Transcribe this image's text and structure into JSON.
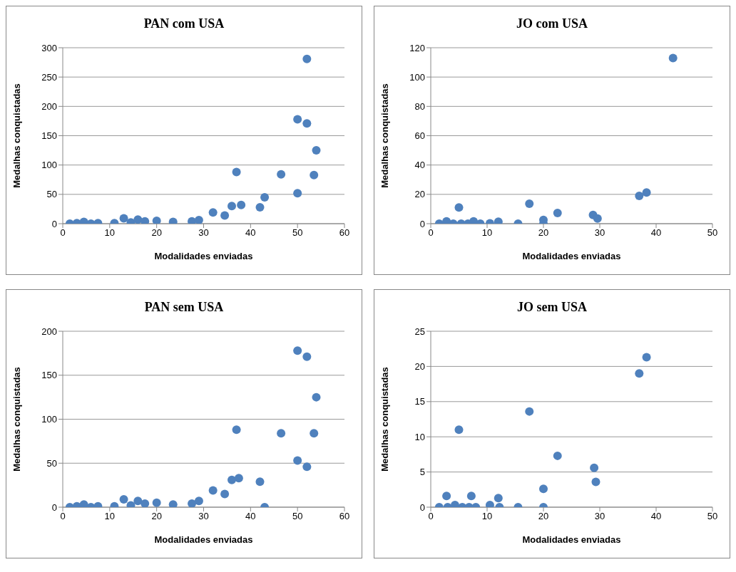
{
  "chart_data": [
    {
      "type": "scatter",
      "title": "PAN com USA",
      "xlabel": "Modalidades enviadas",
      "ylabel": "Medalhas conquistadas",
      "xlim": [
        0,
        60
      ],
      "xticks": [
        0,
        10,
        20,
        30,
        40,
        50,
        60
      ],
      "ylim": [
        0,
        300
      ],
      "yticks": [
        0,
        50,
        100,
        150,
        200,
        250,
        300
      ],
      "grid": "y",
      "marker": "circle",
      "series": [
        {
          "color": "#4f81bd",
          "x": [
            1.5,
            3,
            4.5,
            6,
            7.5,
            11,
            13,
            14.5,
            16,
            17.5,
            20,
            23.5,
            27.5,
            29,
            32,
            34.5,
            36,
            37,
            38,
            42,
            43,
            46.5,
            50,
            50,
            52,
            52,
            53.5,
            54
          ],
          "values": [
            0,
            1,
            3,
            0,
            1,
            1,
            9,
            2,
            7,
            4,
            5,
            3,
            4,
            6,
            19,
            14,
            30,
            88,
            32,
            28,
            45,
            84,
            52,
            178,
            281,
            171,
            83,
            125
          ]
        }
      ]
    },
    {
      "type": "scatter",
      "title": "JO com USA",
      "xlabel": "Modalidades enviadas",
      "ylabel": "Medalhas conquistadas",
      "xlim": [
        0,
        50
      ],
      "xticks": [
        0,
        10,
        20,
        30,
        40,
        50
      ],
      "ylim": [
        0,
        120
      ],
      "yticks": [
        0,
        20,
        40,
        60,
        80,
        100,
        120
      ],
      "grid": "y",
      "marker": "circle",
      "series": [
        {
          "color": "#4f81bd",
          "x": [
            1.5,
            2.8,
            4,
            5,
            5.4,
            6.6,
            7.6,
            8.8,
            10.5,
            12,
            15.5,
            17.5,
            20,
            20,
            22.5,
            28.8,
            29.6,
            37,
            38.3,
            43
          ],
          "values": [
            0,
            1.6,
            0,
            11,
            0,
            0,
            1.6,
            0,
            0.3,
            1.3,
            0,
            13.6,
            2.6,
            0,
            7.3,
            6,
            3.5,
            19,
            21.3,
            113
          ]
        }
      ]
    },
    {
      "type": "scatter",
      "title": "PAN sem USA",
      "xlabel": "Modalidades enviadas",
      "ylabel": "Medalhas conquistadas",
      "xlim": [
        0,
        60
      ],
      "xticks": [
        0,
        10,
        20,
        30,
        40,
        50,
        60
      ],
      "ylim": [
        0,
        200
      ],
      "yticks": [
        0,
        50,
        100,
        150,
        200
      ],
      "grid": "y",
      "marker": "circle",
      "series": [
        {
          "color": "#4f81bd",
          "x": [
            1.5,
            3,
            4.5,
            6,
            7.5,
            11,
            13,
            14.5,
            16,
            17.5,
            20,
            23.5,
            27.5,
            29,
            32,
            34.5,
            36,
            37,
            37.5,
            42,
            43,
            46.5,
            50,
            50,
            52,
            52,
            53.5,
            54
          ],
          "values": [
            0,
            1,
            3,
            0,
            1,
            1,
            9,
            2,
            7,
            4,
            5,
            3,
            4,
            7,
            19,
            15,
            31,
            88,
            33,
            29,
            0,
            84,
            53,
            178,
            171,
            46,
            84,
            125
          ]
        }
      ]
    },
    {
      "type": "scatter",
      "title": "JO sem USA",
      "xlabel": "Modalidades enviadas",
      "ylabel": "Medalhas conquistadas",
      "xlim": [
        0,
        50
      ],
      "xticks": [
        0,
        10,
        20,
        30,
        40,
        50
      ],
      "ylim": [
        0,
        25
      ],
      "yticks": [
        0,
        5,
        10,
        15,
        20,
        25
      ],
      "grid": "y",
      "marker": "circle",
      "series": [
        {
          "color": "#4f81bd",
          "x": [
            1.5,
            2.8,
            3,
            4.3,
            5,
            5.6,
            6.8,
            7.2,
            8,
            10.5,
            12,
            12.2,
            15.5,
            17.5,
            20,
            20,
            22.5,
            29,
            29.3,
            37,
            38.3
          ],
          "values": [
            0,
            1.6,
            0,
            0.3,
            11,
            0,
            0,
            1.6,
            0,
            0.3,
            1.3,
            0,
            0,
            13.6,
            2.6,
            0,
            7.3,
            5.6,
            3.6,
            19,
            21.3
          ]
        }
      ]
    }
  ]
}
